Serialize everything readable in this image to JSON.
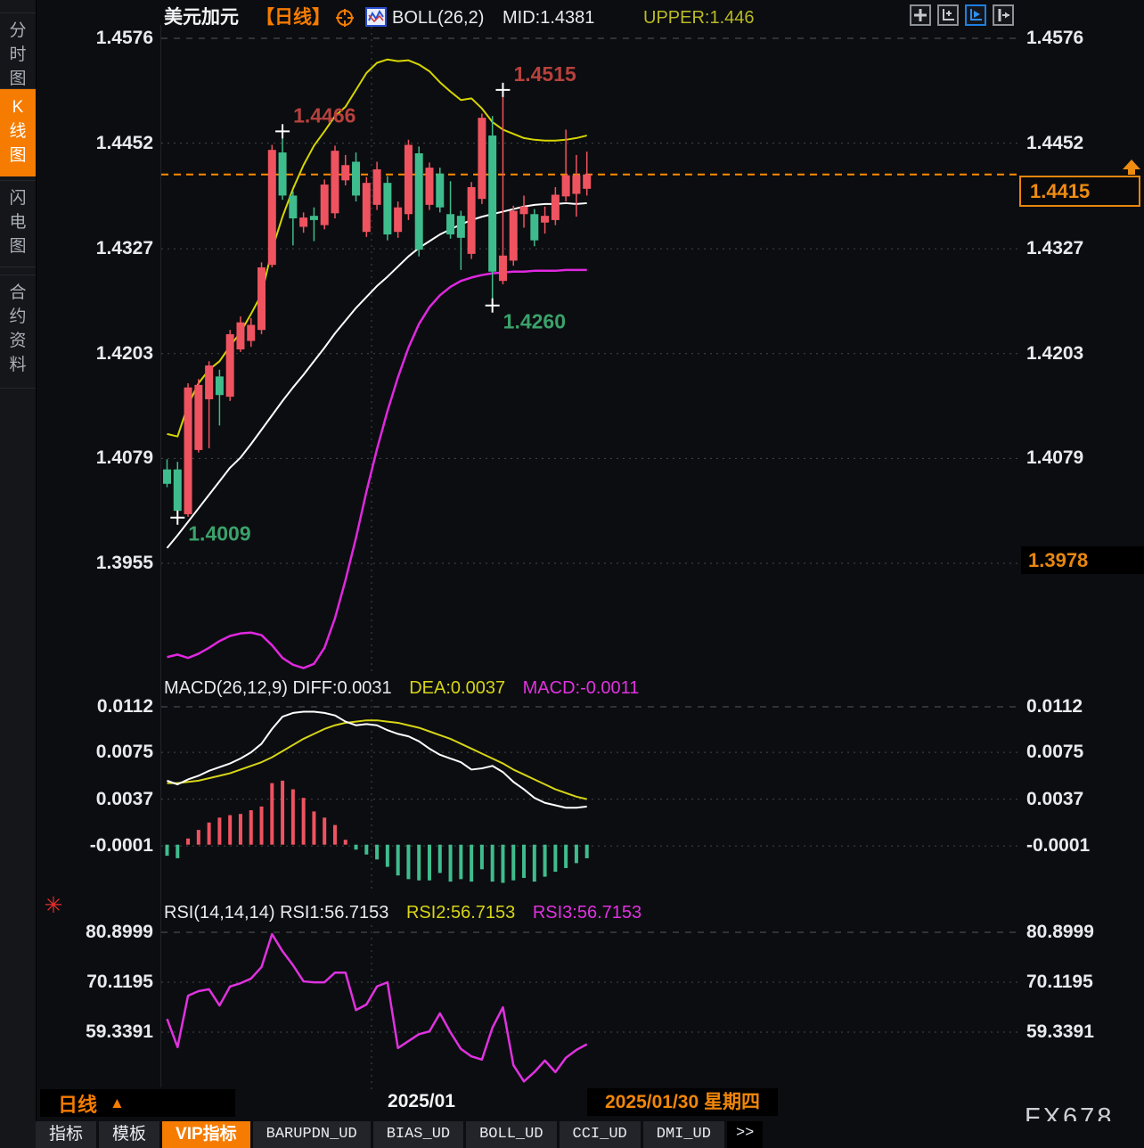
{
  "app": {
    "watermark": "FX678"
  },
  "sidebar": {
    "tabs": [
      {
        "label": "分时图",
        "active": false
      },
      {
        "label": "K线图",
        "active": true
      },
      {
        "label": "闪电图",
        "active": false
      },
      {
        "label": "合约资料",
        "active": false
      }
    ]
  },
  "toolbar": {
    "icons": [
      "move-icon",
      "axis-scale-icon",
      "axis-play-icon",
      "collapse-panel-icon"
    ],
    "active_index": 2
  },
  "bottom": {
    "period_label": "日线",
    "period_arrow": "▲",
    "month_label": "2025/01",
    "date_label": "2025/01/30 星期四",
    "more": ">>",
    "tabs": [
      {
        "label": "指标",
        "mono": false,
        "active": false
      },
      {
        "label": "模板",
        "mono": false,
        "active": false
      },
      {
        "label": "VIP指标",
        "mono": false,
        "active": true
      },
      {
        "label": "BARUPDN_UD",
        "mono": true,
        "active": false
      },
      {
        "label": "BIAS_UD",
        "mono": true,
        "active": false
      },
      {
        "label": "BOLL_UD",
        "mono": true,
        "active": false
      },
      {
        "label": "CCI_UD",
        "mono": true,
        "active": false
      },
      {
        "label": "DMI_UD",
        "mono": true,
        "active": false
      }
    ]
  },
  "chart_data": [
    {
      "type": "candlestick",
      "title": "USD/CAD daily candlestick with Bollinger Bands",
      "legend": {
        "symbol": "美元加元",
        "period": "【日线】",
        "indicator": "BOLL(26,2)",
        "mid": "MID:1.4381",
        "upper": "UPPER:1.446"
      },
      "y_axis_labels": [
        "1.4576",
        "1.4452",
        "1.4327",
        "1.4203",
        "1.4079",
        "1.3955"
      ],
      "current_price": "1.4415",
      "current_price_value": 1.4415,
      "session_low_tag": "1.3978",
      "candles_ohlc": [
        [
          1.4066,
          1.4078,
          1.4045,
          1.4049
        ],
        [
          1.4066,
          1.4075,
          1.4009,
          1.4017
        ],
        [
          1.4013,
          1.4168,
          1.401,
          1.4163
        ],
        [
          1.4089,
          1.4173,
          1.4086,
          1.4166
        ],
        [
          1.4149,
          1.4194,
          1.4091,
          1.4189
        ],
        [
          1.4176,
          1.4184,
          1.4118,
          1.4154
        ],
        [
          1.4152,
          1.4231,
          1.4147,
          1.4226
        ],
        [
          1.4208,
          1.4247,
          1.4205,
          1.424
        ],
        [
          1.4218,
          1.4245,
          1.4211,
          1.4237
        ],
        [
          1.4231,
          1.4311,
          1.4226,
          1.4305
        ],
        [
          1.4308,
          1.445,
          1.4305,
          1.4444
        ],
        [
          1.4441,
          1.4466,
          1.4385,
          1.439
        ],
        [
          1.439,
          1.4395,
          1.4331,
          1.4363
        ],
        [
          1.4353,
          1.437,
          1.4346,
          1.4364
        ],
        [
          1.4366,
          1.4376,
          1.4336,
          1.4361
        ],
        [
          1.4355,
          1.4409,
          1.435,
          1.4403
        ],
        [
          1.4369,
          1.4449,
          1.4363,
          1.4443
        ],
        [
          1.4408,
          1.4438,
          1.4402,
          1.4426
        ],
        [
          1.443,
          1.4441,
          1.4383,
          1.439
        ],
        [
          1.4347,
          1.4412,
          1.4341,
          1.4405
        ],
        [
          1.4379,
          1.443,
          1.4373,
          1.4421
        ],
        [
          1.4405,
          1.4413,
          1.4337,
          1.4344
        ],
        [
          1.4347,
          1.4383,
          1.434,
          1.4376
        ],
        [
          1.4368,
          1.4456,
          1.4361,
          1.445
        ],
        [
          1.444,
          1.4448,
          1.4318,
          1.4326
        ],
        [
          1.4379,
          1.4429,
          1.4373,
          1.4423
        ],
        [
          1.4416,
          1.4423,
          1.437,
          1.4376
        ],
        [
          1.4368,
          1.4407,
          1.4339,
          1.4344
        ],
        [
          1.4366,
          1.4372,
          1.4302,
          1.434
        ],
        [
          1.4321,
          1.4406,
          1.4315,
          1.44
        ],
        [
          1.4386,
          1.4487,
          1.438,
          1.4482
        ],
        [
          1.4461,
          1.4484,
          1.426,
          1.43
        ],
        [
          1.4289,
          1.4515,
          1.4285,
          1.4319
        ],
        [
          1.4313,
          1.4378,
          1.4307,
          1.4372
        ],
        [
          1.4368,
          1.439,
          1.4352,
          1.4377
        ],
        [
          1.4368,
          1.4374,
          1.433,
          1.4337
        ],
        [
          1.4358,
          1.4377,
          1.4345,
          1.4366
        ],
        [
          1.4361,
          1.44,
          1.4355,
          1.4391
        ],
        [
          1.4389,
          1.4468,
          1.4383,
          1.4414
        ],
        [
          1.4392,
          1.4438,
          1.4365,
          1.4414
        ],
        [
          1.4398,
          1.4442,
          1.439,
          1.4415
        ]
      ],
      "boll_upper": [
        1.4108,
        1.4105,
        1.4142,
        1.4168,
        1.4184,
        1.4194,
        1.4212,
        1.4228,
        1.425,
        1.4273,
        1.4326,
        1.4365,
        1.4398,
        1.4426,
        1.4449,
        1.4466,
        1.4484,
        1.4495,
        1.4515,
        1.4535,
        1.4547,
        1.4551,
        1.4549,
        1.455,
        1.4545,
        1.4537,
        1.4524,
        1.4513,
        1.4503,
        1.4505,
        1.4493,
        1.4477,
        1.4468,
        1.4463,
        1.4458,
        1.4456,
        1.4455,
        1.4455,
        1.4456,
        1.4458,
        1.4461
      ],
      "boll_mid": [
        1.3973,
        1.3988,
        1.4004,
        1.402,
        1.4036,
        1.4052,
        1.4068,
        1.408,
        1.4096,
        1.4113,
        1.413,
        1.4147,
        1.4163,
        1.4178,
        1.4194,
        1.421,
        1.4227,
        1.4242,
        1.4257,
        1.427,
        1.4283,
        1.4294,
        1.4306,
        1.4318,
        1.4328,
        1.4336,
        1.4344,
        1.435,
        1.4356,
        1.4361,
        1.4365,
        1.4368,
        1.4371,
        1.4374,
        1.4377,
        1.4379,
        1.438,
        1.438,
        1.4381,
        1.438,
        1.4381
      ],
      "boll_lower": [
        1.3844,
        1.3847,
        1.3843,
        1.3848,
        1.3855,
        1.3863,
        1.3869,
        1.3872,
        1.3873,
        1.387,
        1.3858,
        1.3843,
        1.3835,
        1.3831,
        1.3836,
        1.3855,
        1.389,
        1.3935,
        1.3985,
        1.404,
        1.409,
        1.4135,
        1.4175,
        1.421,
        1.4238,
        1.4258,
        1.4272,
        1.4282,
        1.4289,
        1.4293,
        1.4296,
        1.4298,
        1.4299,
        1.43,
        1.43,
        1.4301,
        1.4301,
        1.4301,
        1.4302,
        1.4302,
        1.4302
      ],
      "annotations": [
        {
          "index": 11,
          "price": 1.4466,
          "label": "1.4466",
          "kind": "high"
        },
        {
          "index": 32,
          "price": 1.4515,
          "label": "1.4515",
          "kind": "high"
        },
        {
          "index": 31,
          "price": 1.426,
          "label": "1.4260",
          "kind": "low"
        },
        {
          "index": 1,
          "price": 1.4009,
          "label": "1.4009",
          "kind": "low"
        }
      ],
      "colors": {
        "up": "#ef5360",
        "down": "#3fbc8d",
        "upper_band": "#d6d500",
        "mid_band": "#ffffff",
        "lower_band": "#e028e0",
        "price_line": "#ff8b00",
        "ann_high": "#b8413d",
        "ann_low": "#3aa26b"
      }
    },
    {
      "type": "macd",
      "title": "MACD indicator panel",
      "legend": {
        "left": "MACD(26,12,9) DIFF:0.0031",
        "dea": "DEA:0.0037",
        "macd": "MACD:-0.0011"
      },
      "y_axis_labels": [
        "0.0112",
        "0.0075",
        "0.0037",
        "-0.0001"
      ],
      "diff": [
        0.0052,
        0.0049,
        0.0053,
        0.0056,
        0.006,
        0.0063,
        0.0066,
        0.007,
        0.0075,
        0.0082,
        0.0094,
        0.0104,
        0.0107,
        0.0108,
        0.0108,
        0.0107,
        0.0105,
        0.01,
        0.0097,
        0.0098,
        0.0097,
        0.0093,
        0.009,
        0.0088,
        0.0084,
        0.0078,
        0.0073,
        0.007,
        0.0067,
        0.0061,
        0.0062,
        0.0064,
        0.0059,
        0.0051,
        0.0045,
        0.0038,
        0.0034,
        0.0032,
        0.003,
        0.003,
        0.0031
      ],
      "dea": [
        0.005,
        0.005,
        0.0051,
        0.0052,
        0.0054,
        0.0056,
        0.0058,
        0.0061,
        0.0064,
        0.0067,
        0.0071,
        0.0076,
        0.0081,
        0.0086,
        0.009,
        0.0094,
        0.0097,
        0.0099,
        0.01,
        0.0101,
        0.0101,
        0.01,
        0.0099,
        0.0097,
        0.0095,
        0.0092,
        0.0089,
        0.0086,
        0.0082,
        0.0078,
        0.0074,
        0.007,
        0.0066,
        0.0061,
        0.0057,
        0.0053,
        0.0049,
        0.0045,
        0.0042,
        0.0039,
        0.0037
      ],
      "hist": [
        -0.0009,
        -0.0011,
        0.0005,
        0.0012,
        0.0018,
        0.0022,
        0.0024,
        0.0025,
        0.0028,
        0.0031,
        0.005,
        0.0052,
        0.0045,
        0.0038,
        0.0027,
        0.0022,
        0.0016,
        0.0004,
        -0.0004,
        -0.0008,
        -0.0012,
        -0.0018,
        -0.0025,
        -0.0028,
        -0.0029,
        -0.0029,
        -0.0023,
        -0.003,
        -0.0028,
        -0.003,
        -0.002,
        -0.003,
        -0.0031,
        -0.0029,
        -0.0027,
        -0.003,
        -0.0026,
        -0.0022,
        -0.0019,
        -0.0015,
        -0.0011
      ],
      "colors": {
        "diff": "#ffffff",
        "dea": "#d6d516",
        "pos": "#ef5360",
        "neg": "#3fbc8d"
      }
    },
    {
      "type": "rsi",
      "title": "RSI indicator panel",
      "legend": {
        "left": "RSI(14,14,14) RSI1:56.7153",
        "rsi2": "RSI2:56.7153",
        "rsi3": "RSI3:56.7153"
      },
      "y_axis_labels": [
        "80.8999",
        "70.1195",
        "59.3391"
      ],
      "values": [
        62.2,
        56.1,
        67.2,
        68.2,
        68.6,
        65.1,
        69.2,
        69.9,
        70.9,
        73.4,
        80.5,
        76.8,
        73.8,
        70.3,
        70.1,
        70.1,
        72.2,
        72.2,
        64.1,
        65.3,
        69.2,
        70.1,
        55.9,
        57.4,
        58.9,
        59.5,
        63.4,
        59.3,
        55.7,
        54.1,
        53.4,
        60.3,
        64.7,
        52.2,
        48.7,
        50.7,
        53.2,
        50.7,
        53.8,
        55.5,
        56.7153
      ],
      "colors": {
        "line": "#e032e0"
      }
    }
  ]
}
